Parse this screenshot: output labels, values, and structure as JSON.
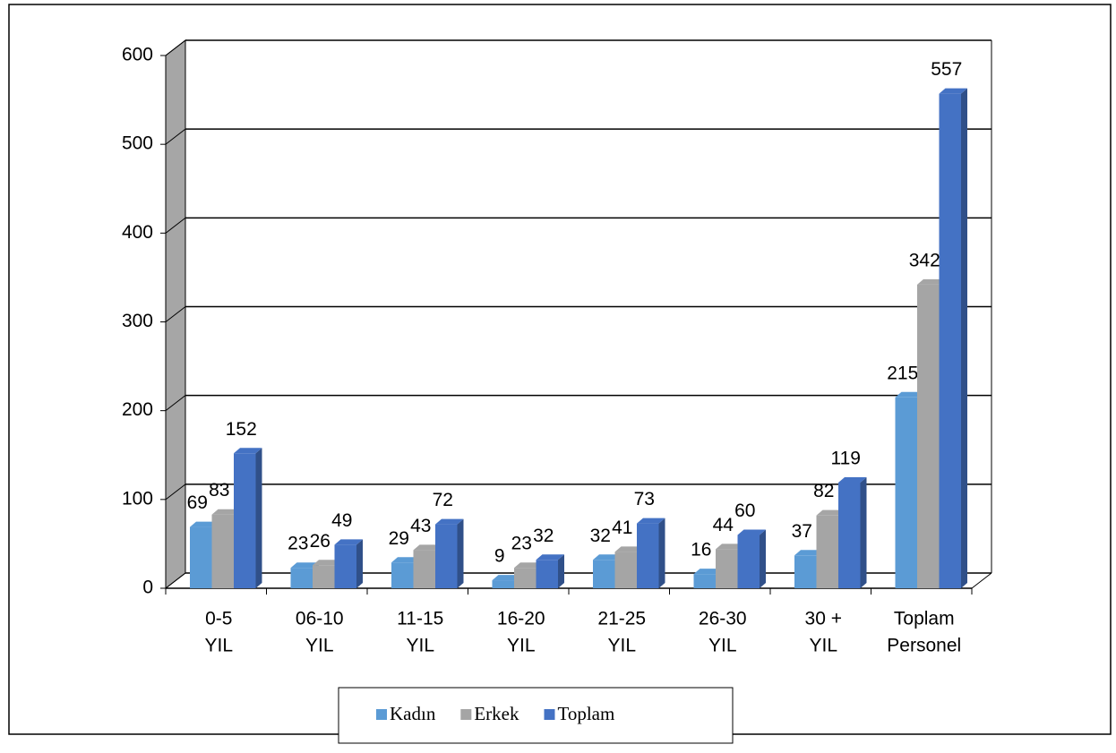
{
  "chart_data": {
    "type": "bar3d",
    "categories": [
      [
        "0-5",
        "YIL"
      ],
      [
        "06-10",
        "YIL"
      ],
      [
        "11-15",
        "YIL"
      ],
      [
        "16-20",
        "YIL"
      ],
      [
        "21-25",
        "YIL"
      ],
      [
        "26-30",
        "YIL"
      ],
      [
        "30 +",
        "YIL"
      ],
      [
        "Toplam",
        "Personel"
      ]
    ],
    "series": [
      {
        "name": "Kadın",
        "color": "#5b9bd5",
        "values": [
          69,
          23,
          29,
          9,
          32,
          16,
          37,
          215
        ]
      },
      {
        "name": "Erkek",
        "color": "#a5a5a5",
        "values": [
          83,
          26,
          43,
          23,
          41,
          44,
          82,
          342
        ]
      },
      {
        "name": "Toplam",
        "color": "#4472c4",
        "values": [
          152,
          49,
          72,
          32,
          73,
          60,
          119,
          557
        ]
      }
    ],
    "ylim": [
      0,
      600
    ],
    "yticks": [
      0,
      100,
      200,
      300,
      400,
      500,
      600
    ],
    "grid": true,
    "legend": "bottom"
  }
}
